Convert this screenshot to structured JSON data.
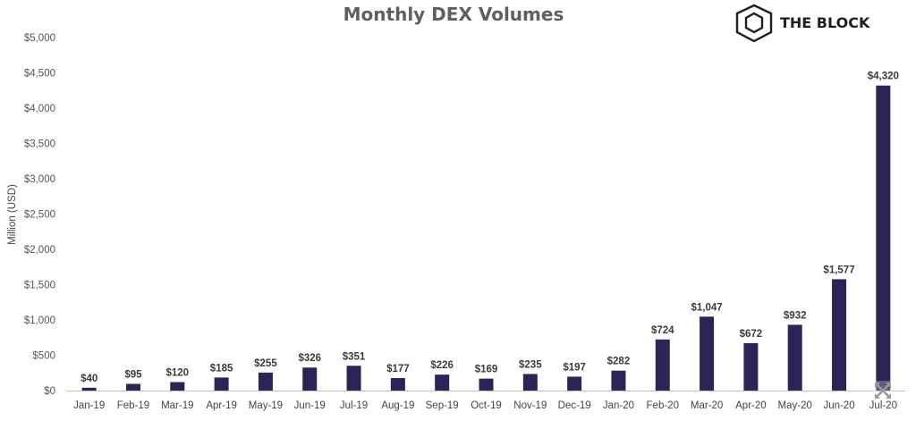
{
  "brand": {
    "name": "THE BLOCK",
    "logo_icon": "cube-logo-icon"
  },
  "chart_data": {
    "type": "bar",
    "title": "Monthly DEX Volumes",
    "xlabel": "",
    "ylabel": "Million (USD)",
    "ylim": [
      0,
      5000
    ],
    "yticks": [
      0,
      500,
      1000,
      1500,
      2000,
      2500,
      3000,
      3500,
      4000,
      4500,
      5000
    ],
    "ytick_labels": [
      "$0",
      "$500",
      "$1,000",
      "$1,500",
      "$2,000",
      "$2,500",
      "$3,000",
      "$3,500",
      "$4,000",
      "$4,500",
      "$5,000"
    ],
    "categories": [
      "Jan-19",
      "Feb-19",
      "Mar-19",
      "Apr-19",
      "May-19",
      "Jun-19",
      "Jul-19",
      "Aug-19",
      "Sep-19",
      "Oct-19",
      "Nov-19",
      "Dec-19",
      "Jan-20",
      "Feb-20",
      "Mar-20",
      "Apr-20",
      "May-20",
      "Jun-20",
      "Jul-20"
    ],
    "values": [
      40,
      95,
      120,
      185,
      255,
      326,
      351,
      177,
      226,
      169,
      235,
      197,
      282,
      724,
      1047,
      672,
      932,
      1577,
      4320
    ],
    "data_labels": [
      "$40",
      "$95",
      "$120",
      "$185",
      "$255",
      "$326",
      "$351",
      "$177",
      "$226",
      "$169",
      "$235",
      "$197",
      "$282",
      "$724",
      "$1,047",
      "$672",
      "$932",
      "$1,577",
      "$4,320"
    ],
    "bar_color": "#2b2457",
    "grid": false,
    "legend": "none"
  }
}
